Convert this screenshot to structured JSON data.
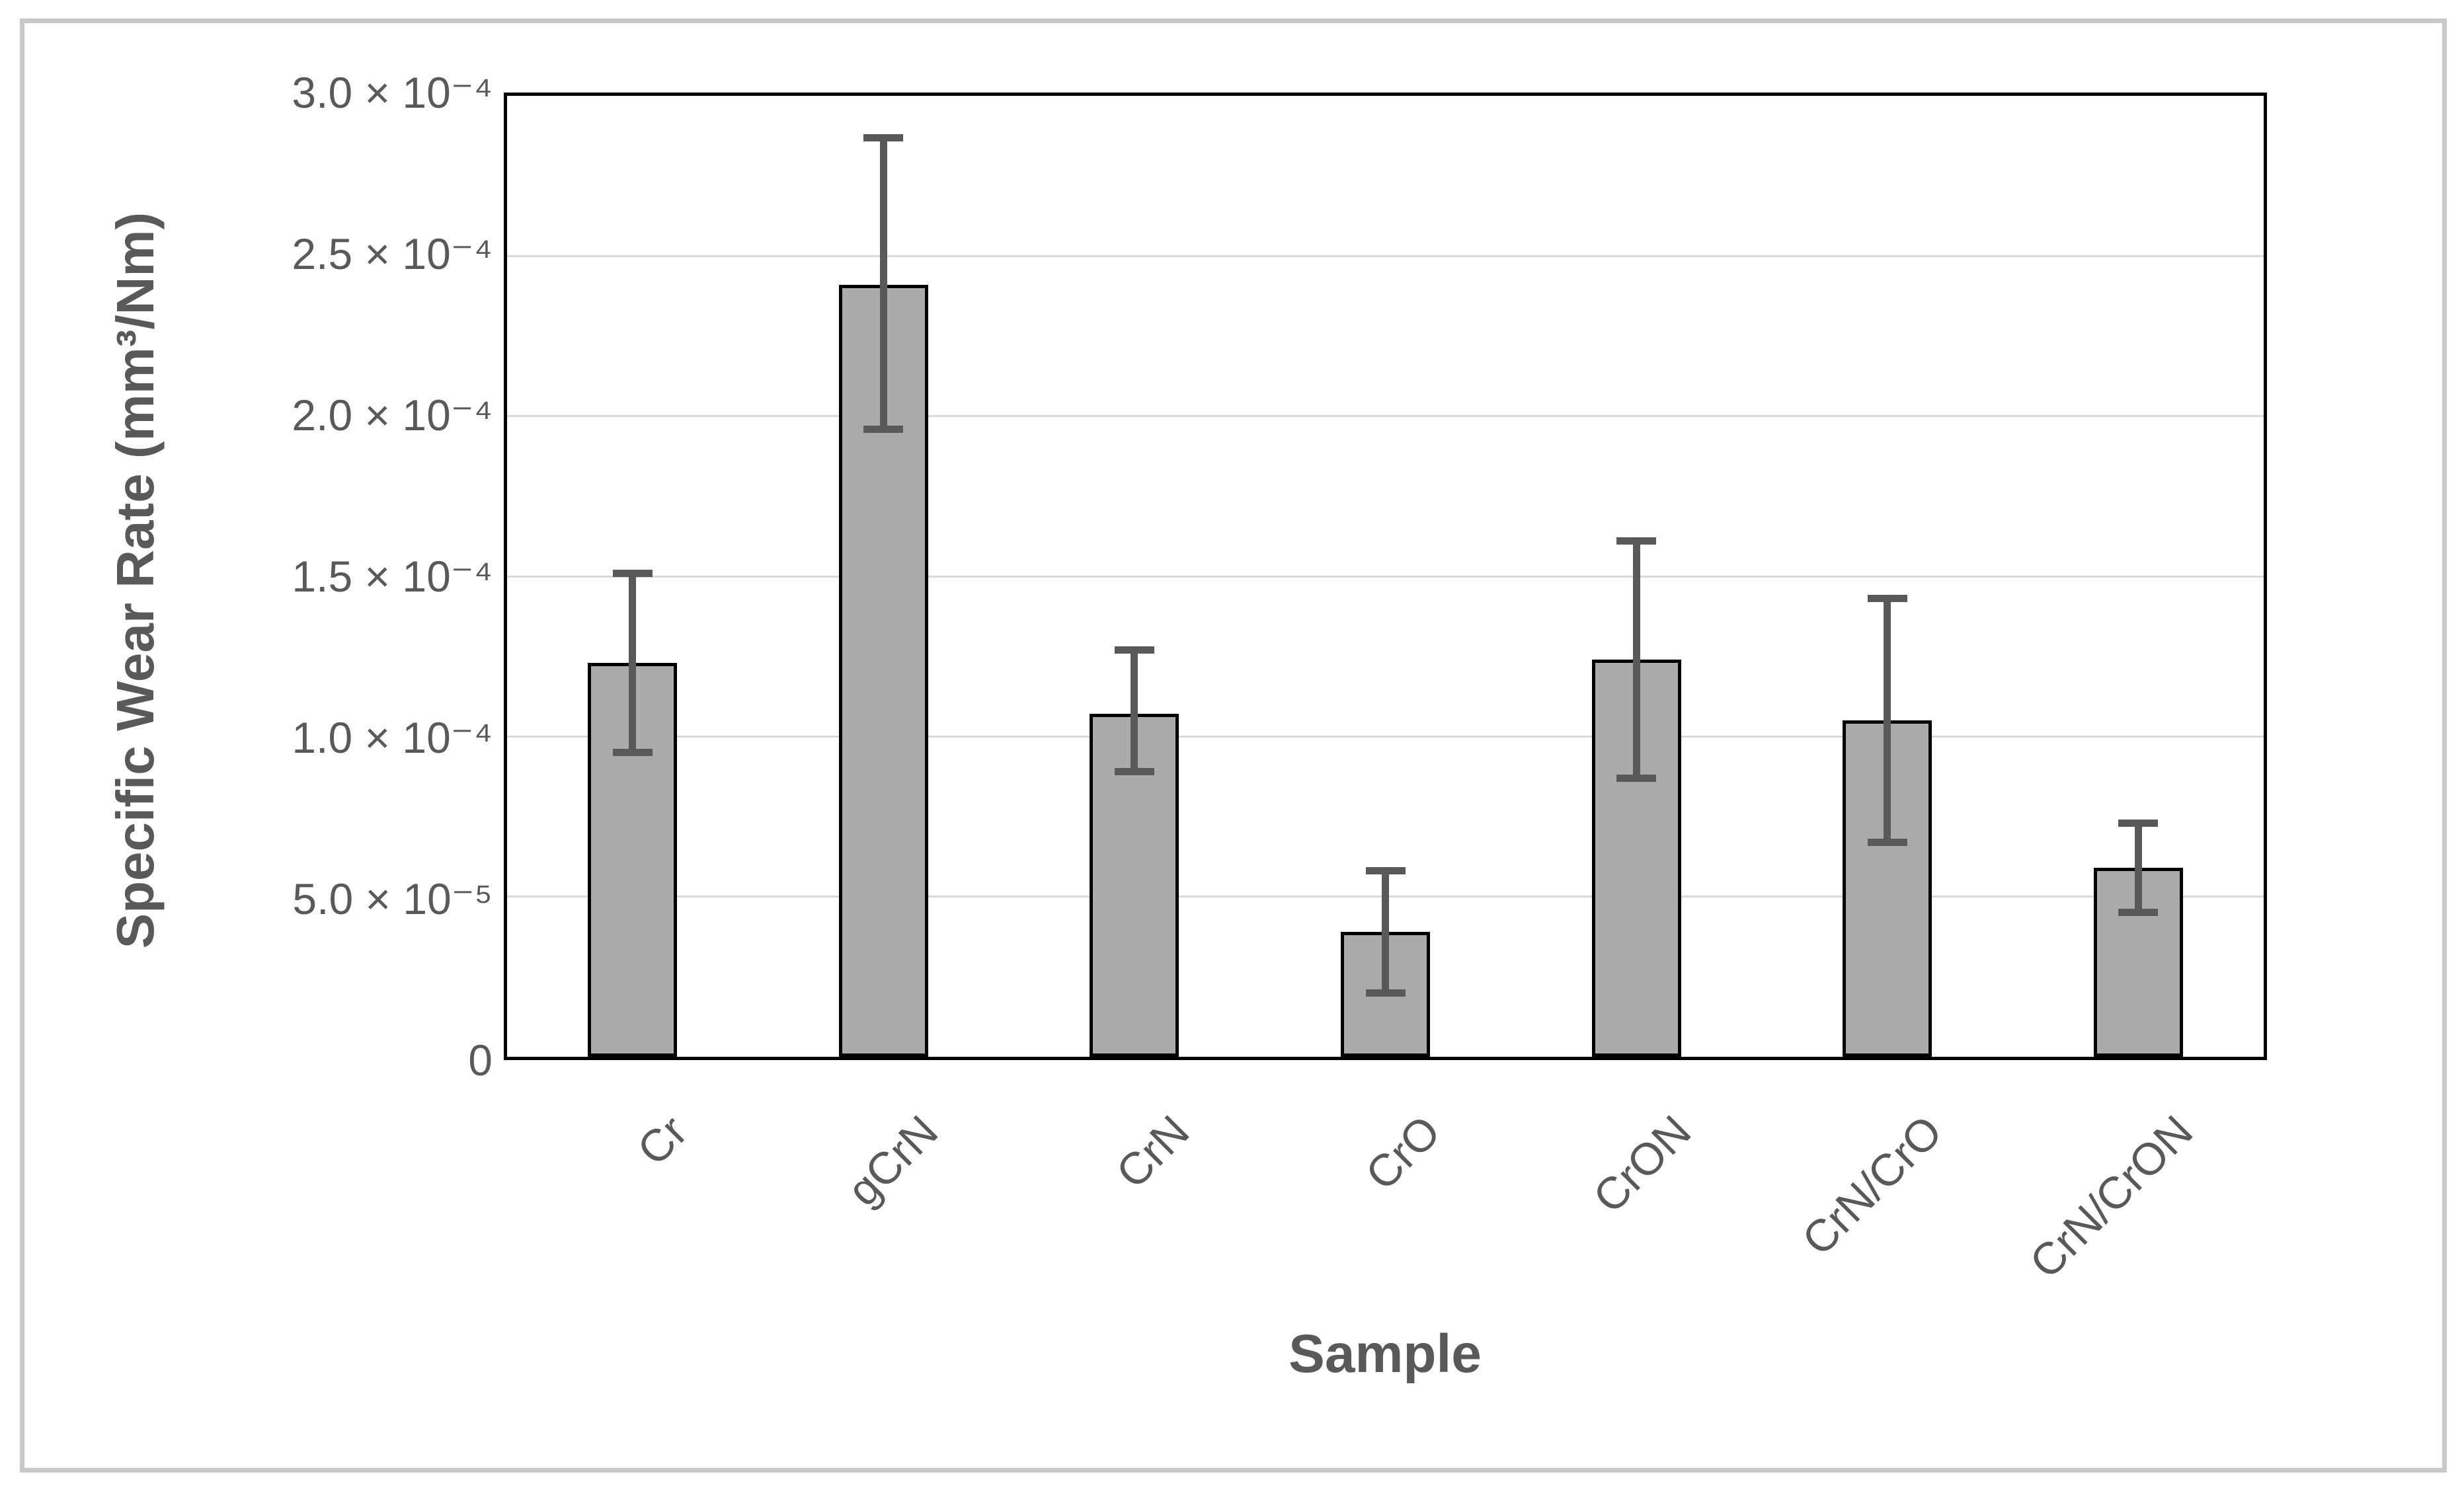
{
  "figure": {
    "background": "#ffffff",
    "frame_color": "#c9c9c9"
  },
  "chart_data": {
    "type": "bar",
    "title": "",
    "xlabel": "Sample",
    "ylabel": "Specific Wear Rate (mm³/Nm)",
    "categories": [
      "Cr",
      "gCrN",
      "CrN",
      "CrO",
      "CrON",
      "CrN/CrO",
      "CrN/CrON"
    ],
    "values": [
      0.000123,
      0.000241,
      0.000107,
      3.9e-05,
      0.000124,
      0.000105,
      5.9e-05
    ],
    "error_plus": [
      2.8e-05,
      4.6e-05,
      2e-05,
      1.9e-05,
      3.7e-05,
      3.8e-05,
      1.4e-05
    ],
    "error_minus": [
      2.8e-05,
      4.5e-05,
      1.8e-05,
      1.9e-05,
      3.7e-05,
      3.8e-05,
      1.4e-05
    ],
    "ylim": [
      0,
      0.0003
    ],
    "ytick_step": 5e-05,
    "ytick_labels": [
      "0",
      "5.0 × 10⁻⁵",
      "1.0 × 10⁻⁴",
      "1.5 × 10⁻⁴",
      "2.0 × 10⁻⁴",
      "2.5 × 10⁻⁴",
      "3.0 × 10⁻⁴"
    ],
    "grid": true,
    "legend": "none",
    "x_label_rotation_deg": 45,
    "colors": {
      "bar_fill": "#ababab",
      "bar_border": "#000000",
      "error_bar": "#595959",
      "gridline": "#d9d9d9",
      "axis_border": "#000000",
      "text": "#595959"
    }
  }
}
